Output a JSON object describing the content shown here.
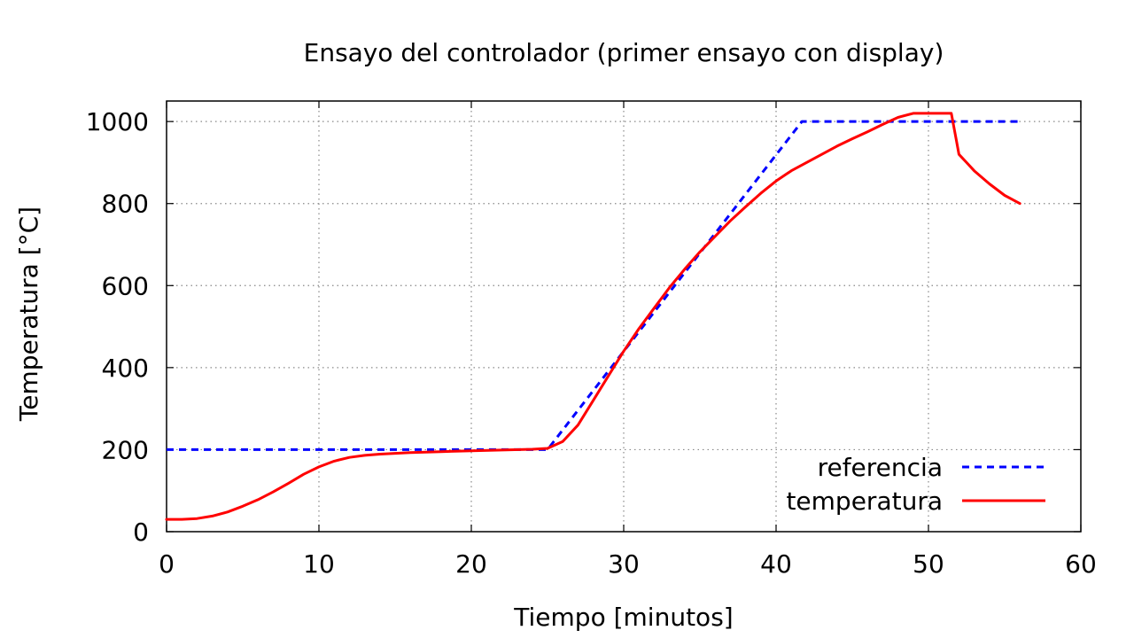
{
  "chart_data": {
    "type": "line",
    "title": "Ensayo del controlador (primer ensayo con display)",
    "xlabel": "Tiempo [minutos]",
    "ylabel": "Temperatura [°C]",
    "xlim": [
      0,
      60
    ],
    "ylim": [
      0,
      1050
    ],
    "xticks": [
      0,
      10,
      20,
      30,
      40,
      50,
      60
    ],
    "yticks": [
      0,
      200,
      400,
      600,
      800,
      1000
    ],
    "grid": true,
    "legend_position": "bottom-right",
    "series": [
      {
        "name": "referencia",
        "color": "#0000ff",
        "style": "dashed",
        "x": [
          0,
          25,
          41.7,
          56
        ],
        "y": [
          200,
          200,
          1000,
          1000
        ]
      },
      {
        "name": "temperatura",
        "color": "#ff0000",
        "style": "solid",
        "x": [
          0,
          1,
          2,
          3,
          4,
          5,
          6,
          7,
          8,
          9,
          10,
          11,
          12,
          13,
          14,
          15,
          16,
          18,
          20,
          22,
          24,
          25,
          26,
          27,
          28,
          29,
          30,
          31,
          32,
          33,
          34,
          35,
          36,
          37,
          38,
          39,
          40,
          41,
          42,
          43,
          44,
          45,
          46,
          47,
          48,
          49,
          50,
          51,
          51.5,
          51.8,
          52,
          52.5,
          53,
          54,
          55,
          56
        ],
        "y": [
          30,
          30,
          32,
          38,
          48,
          62,
          78,
          97,
          118,
          140,
          158,
          172,
          181,
          186,
          189,
          191,
          193,
          195,
          197,
          199,
          201,
          203,
          220,
          260,
          320,
          380,
          440,
          495,
          545,
          595,
          640,
          682,
          720,
          758,
          792,
          825,
          855,
          880,
          900,
          920,
          940,
          958,
          975,
          993,
          1010,
          1020,
          1020,
          1020,
          1020,
          960,
          920,
          900,
          880,
          848,
          820,
          800
        ]
      }
    ]
  }
}
